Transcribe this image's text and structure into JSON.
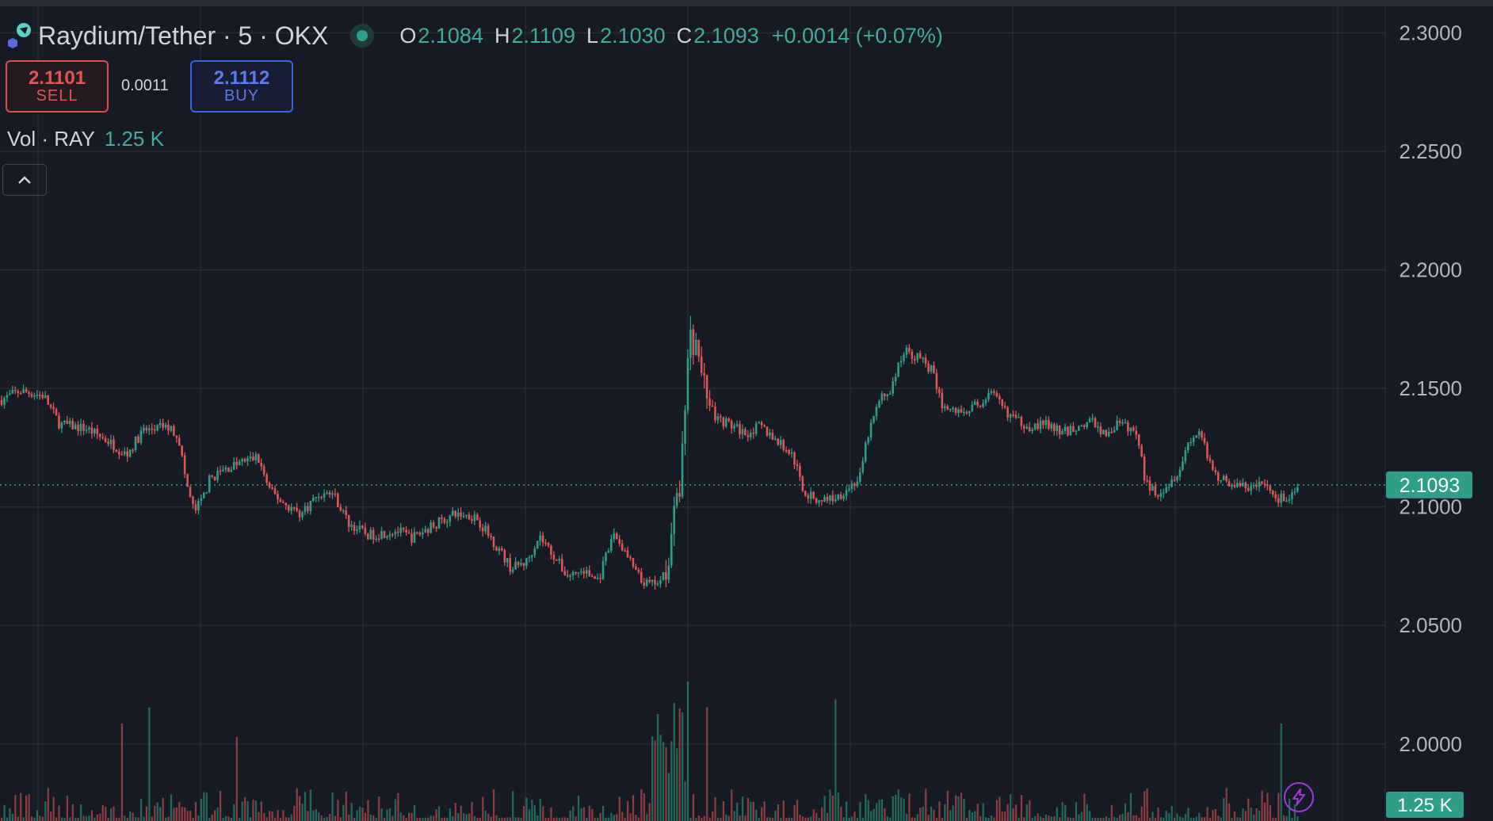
{
  "header": {
    "symbol": "Raydium/Tether · 5 · OKX",
    "ohlc": {
      "o": "2.1084",
      "h": "2.1109",
      "l": "2.1030",
      "c": "2.1093",
      "change": "+0.0014 (+0.07%)"
    },
    "labels": {
      "o": "O",
      "h": "H",
      "l": "L",
      "c": "C"
    }
  },
  "trade": {
    "sell_price": "2.1101",
    "sell_label": "SELL",
    "spread": "0.0011",
    "buy_price": "2.1112",
    "buy_label": "BUY"
  },
  "volume_legend": {
    "label": "Vol · RAY",
    "value": "1.25 K"
  },
  "colors": {
    "up": "#2e9e86",
    "down": "#e05555",
    "background": "#161a25",
    "grid": "#262a35"
  },
  "icons": {
    "logo": "raydium-logo-icon",
    "status": "market-open-dot-icon",
    "collapse": "chevron-up-icon",
    "flash": "lightning-icon"
  },
  "chart_data": {
    "type": "candlestick",
    "title": "Raydium/Tether · 5 · OKX",
    "ylim": [
      1.9675,
      2.3112
    ],
    "yticks": [
      "2.3000",
      "2.2500",
      "2.2000",
      "2.1500",
      "2.1000",
      "2.0500",
      "2.0000"
    ],
    "ytick_values": [
      2.3,
      2.25,
      2.2,
      2.15,
      2.1,
      2.05,
      2.0
    ],
    "last_price": 2.1093,
    "last_price_label": "2.1093",
    "volume_last_label": "1.25 K",
    "grid": true,
    "price_series_approx": [
      [
        0,
        2.145
      ],
      [
        25,
        2.149
      ],
      [
        55,
        2.147
      ],
      [
        75,
        2.135
      ],
      [
        110,
        2.133
      ],
      [
        140,
        2.127
      ],
      [
        160,
        2.122
      ],
      [
        180,
        2.132
      ],
      [
        210,
        2.134
      ],
      [
        225,
        2.13
      ],
      [
        235,
        2.11
      ],
      [
        245,
        2.098
      ],
      [
        255,
        2.103
      ],
      [
        265,
        2.112
      ],
      [
        285,
        2.116
      ],
      [
        305,
        2.119
      ],
      [
        325,
        2.121
      ],
      [
        340,
        2.107
      ],
      [
        360,
        2.101
      ],
      [
        380,
        2.097
      ],
      [
        400,
        2.105
      ],
      [
        420,
        2.106
      ],
      [
        440,
        2.093
      ],
      [
        465,
        2.088
      ],
      [
        500,
        2.09
      ],
      [
        520,
        2.087
      ],
      [
        550,
        2.093
      ],
      [
        575,
        2.097
      ],
      [
        600,
        2.096
      ],
      [
        615,
        2.089
      ],
      [
        630,
        2.082
      ],
      [
        645,
        2.074
      ],
      [
        665,
        2.077
      ],
      [
        680,
        2.088
      ],
      [
        700,
        2.079
      ],
      [
        715,
        2.071
      ],
      [
        735,
        2.073
      ],
      [
        755,
        2.069
      ],
      [
        775,
        2.089
      ],
      [
        790,
        2.08
      ],
      [
        810,
        2.068
      ],
      [
        825,
        2.067
      ],
      [
        840,
        2.073
      ],
      [
        848,
        2.09
      ],
      [
        858,
        2.11
      ],
      [
        870,
        2.172
      ],
      [
        880,
        2.165
      ],
      [
        890,
        2.15
      ],
      [
        900,
        2.138
      ],
      [
        920,
        2.135
      ],
      [
        940,
        2.131
      ],
      [
        960,
        2.134
      ],
      [
        980,
        2.128
      ],
      [
        1000,
        2.122
      ],
      [
        1015,
        2.106
      ],
      [
        1030,
        2.103
      ],
      [
        1055,
        2.104
      ],
      [
        1070,
        2.108
      ],
      [
        1085,
        2.112
      ],
      [
        1095,
        2.13
      ],
      [
        1110,
        2.145
      ],
      [
        1125,
        2.15
      ],
      [
        1140,
        2.166
      ],
      [
        1160,
        2.163
      ],
      [
        1175,
        2.158
      ],
      [
        1190,
        2.142
      ],
      [
        1210,
        2.14
      ],
      [
        1235,
        2.143
      ],
      [
        1250,
        2.148
      ],
      [
        1265,
        2.142
      ],
      [
        1280,
        2.137
      ],
      [
        1300,
        2.134
      ],
      [
        1320,
        2.135
      ],
      [
        1340,
        2.131
      ],
      [
        1360,
        2.134
      ],
      [
        1380,
        2.136
      ],
      [
        1395,
        2.13
      ],
      [
        1410,
        2.135
      ],
      [
        1428,
        2.133
      ],
      [
        1440,
        2.125
      ],
      [
        1445,
        2.11
      ],
      [
        1460,
        2.106
      ],
      [
        1475,
        2.11
      ],
      [
        1490,
        2.117
      ],
      [
        1500,
        2.128
      ],
      [
        1515,
        2.132
      ],
      [
        1525,
        2.118
      ],
      [
        1540,
        2.112
      ],
      [
        1560,
        2.109
      ],
      [
        1580,
        2.108
      ],
      [
        1595,
        2.11
      ],
      [
        1610,
        2.104
      ],
      [
        1625,
        2.103
      ],
      [
        1638,
        2.107
      ]
    ]
  }
}
